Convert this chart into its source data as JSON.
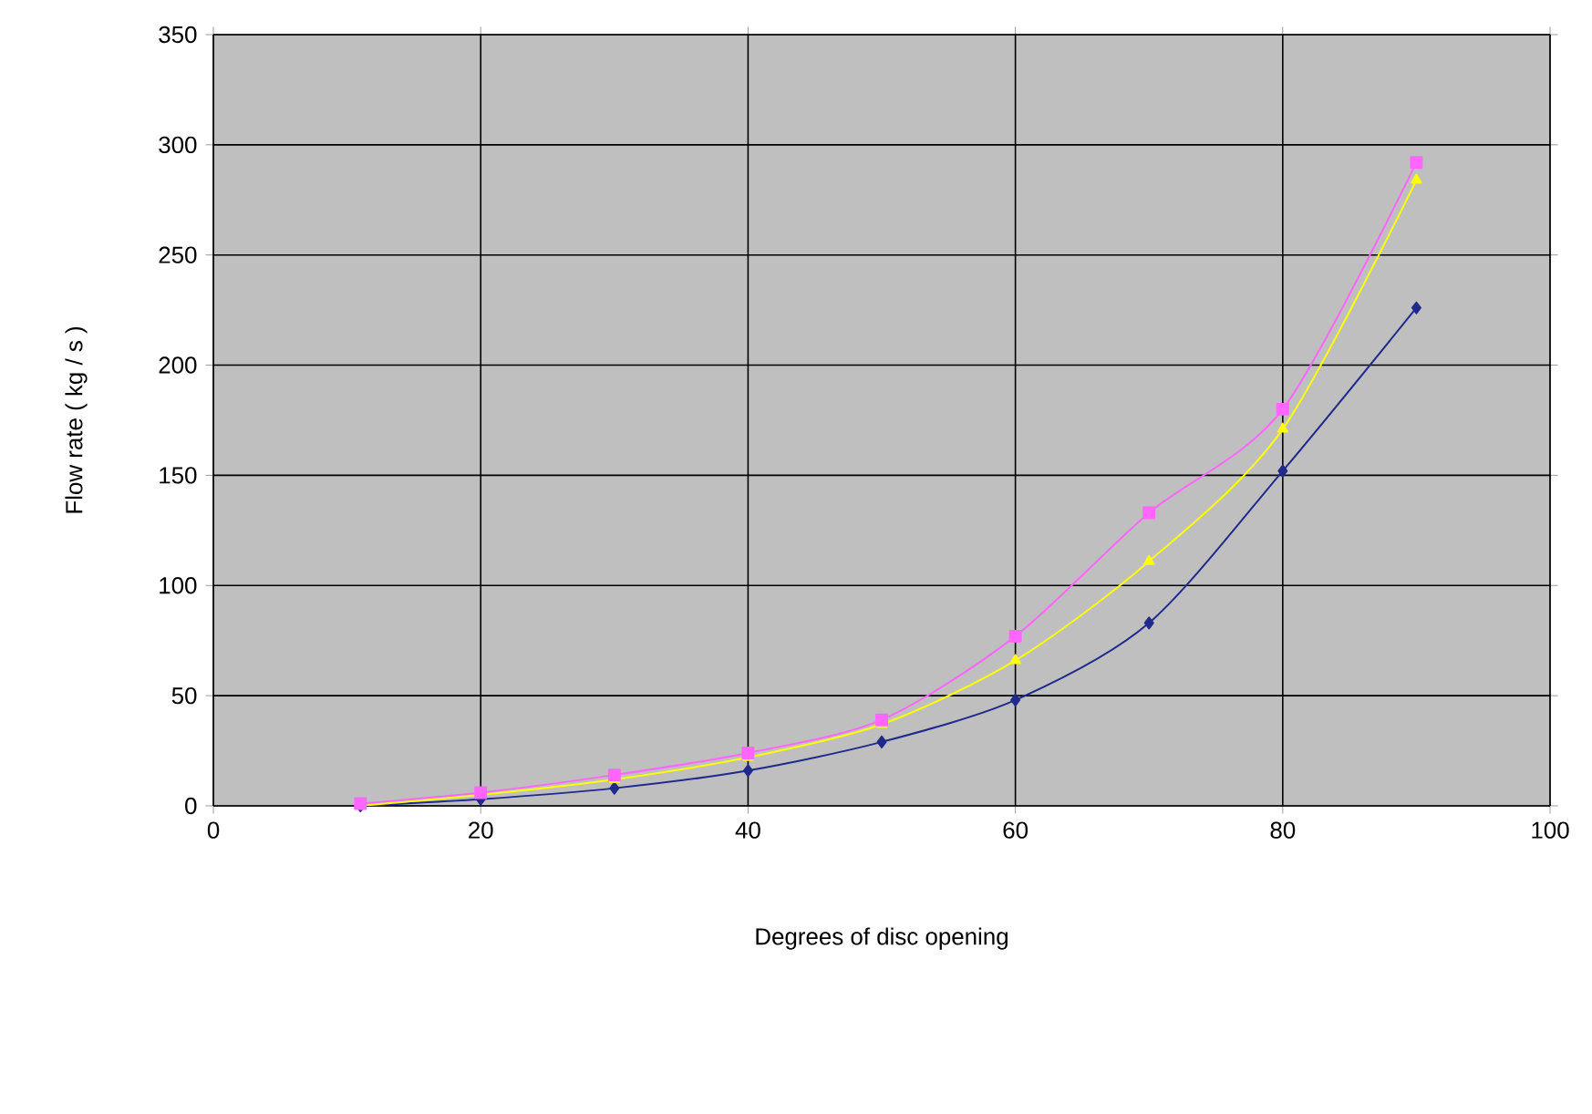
{
  "chart_data": {
    "type": "line",
    "xlabel": "Degrees of disc opening",
    "ylabel": "Flow rate ( kg / s )",
    "x": [
      11,
      20,
      30,
      40,
      50,
      60,
      70,
      80,
      90
    ],
    "series": [
      {
        "color": "#1f2a8c",
        "marker": "diamond",
        "values": [
          0,
          3,
          8,
          16,
          29,
          48,
          83,
          152,
          226
        ]
      },
      {
        "color": "#ffff00",
        "marker": "triangle",
        "values": [
          0,
          5,
          12,
          22,
          37,
          66,
          111,
          171,
          284
        ]
      },
      {
        "color": "#ff66ff",
        "marker": "square",
        "values": [
          1,
          6,
          14,
          24,
          39,
          77,
          133,
          180,
          292
        ]
      }
    ],
    "xlim": [
      0,
      100
    ],
    "xticks": [
      0,
      20,
      40,
      60,
      80,
      100
    ],
    "ylim": [
      0,
      350
    ],
    "yticks": [
      0,
      50,
      100,
      150,
      200,
      250,
      300,
      350
    ],
    "grid": true,
    "line_style": "solid"
  }
}
